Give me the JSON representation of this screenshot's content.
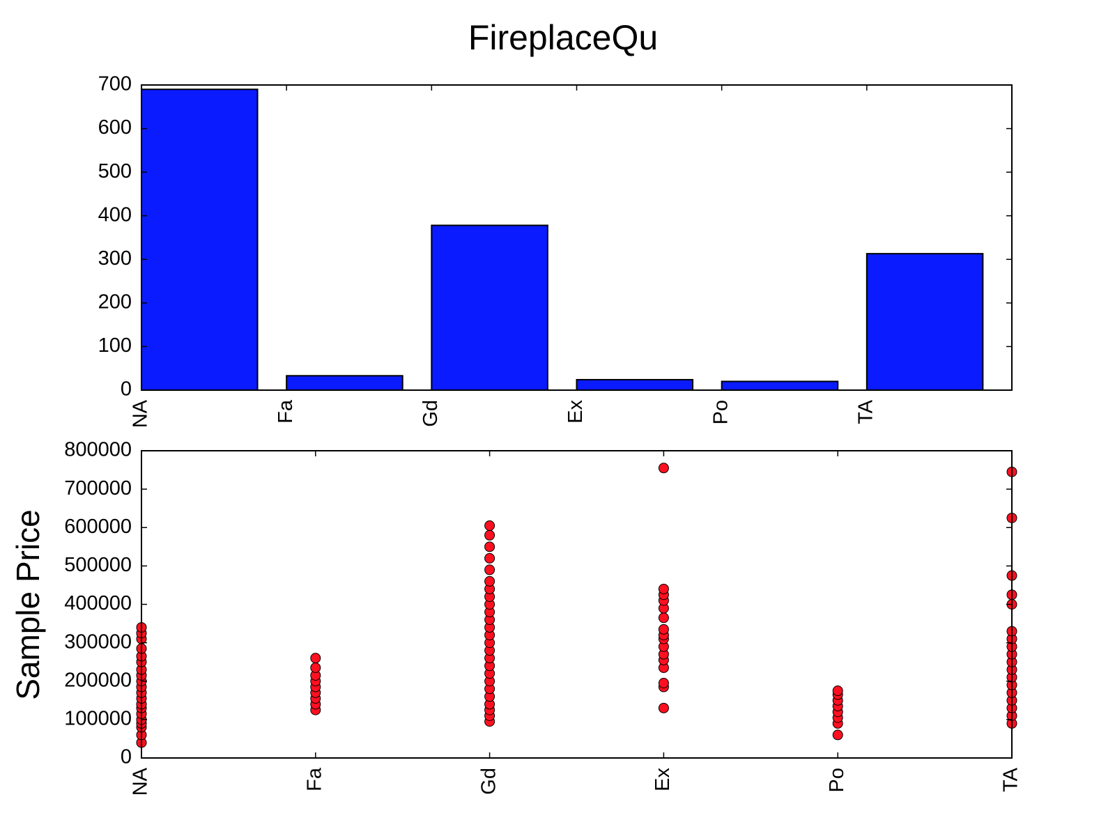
{
  "chart_data": [
    {
      "type": "bar",
      "title": "FireplaceQu",
      "categories": [
        "NA",
        "Fa",
        "Gd",
        "Ex",
        "Po",
        "TA"
      ],
      "values": [
        690,
        33,
        378,
        24,
        20,
        313
      ],
      "color": "#0a1cff",
      "ylim": [
        0,
        700
      ],
      "yticks": [
        0,
        100,
        200,
        300,
        400,
        500,
        600,
        700
      ]
    },
    {
      "type": "scatter",
      "ylabel": "Sample Price",
      "categories": [
        "NA",
        "Fa",
        "Gd",
        "Ex",
        "Po",
        "TA"
      ],
      "color": "#ff1020",
      "x": [
        "NA",
        "NA",
        "NA",
        "NA",
        "NA",
        "NA",
        "NA",
        "NA",
        "NA",
        "NA",
        "NA",
        "NA",
        "NA",
        "NA",
        "NA",
        "NA",
        "NA",
        "NA",
        "NA",
        "NA",
        "Fa",
        "Fa",
        "Fa",
        "Fa",
        "Fa",
        "Fa",
        "Fa",
        "Fa",
        "Fa",
        "Gd",
        "Gd",
        "Gd",
        "Gd",
        "Gd",
        "Gd",
        "Gd",
        "Gd",
        "Gd",
        "Gd",
        "Gd",
        "Gd",
        "Gd",
        "Gd",
        "Gd",
        "Gd",
        "Gd",
        "Gd",
        "Gd",
        "Gd",
        "Gd",
        "Gd",
        "Gd",
        "Gd",
        "Gd",
        "Ex",
        "Ex",
        "Ex",
        "Ex",
        "Ex",
        "Ex",
        "Ex",
        "Ex",
        "Ex",
        "Ex",
        "Ex",
        "Ex",
        "Ex",
        "Ex",
        "Ex",
        "Ex",
        "Po",
        "Po",
        "Po",
        "Po",
        "Po",
        "Po",
        "Po",
        "Po",
        "TA",
        "TA",
        "TA",
        "TA",
        "TA",
        "TA",
        "TA",
        "TA",
        "TA",
        "TA",
        "TA",
        "TA",
        "TA",
        "TA",
        "TA",
        "TA",
        "TA",
        "TA"
      ],
      "y": [
        40000,
        60000,
        80000,
        90000,
        100000,
        115000,
        130000,
        140000,
        155000,
        170000,
        185000,
        200000,
        215000,
        230000,
        250000,
        265000,
        285000,
        310000,
        325000,
        340000,
        125000,
        140000,
        155000,
        170000,
        185000,
        200000,
        215000,
        235000,
        260000,
        95000,
        110000,
        125000,
        140000,
        160000,
        180000,
        200000,
        220000,
        240000,
        260000,
        280000,
        300000,
        320000,
        340000,
        360000,
        380000,
        400000,
        420000,
        440000,
        460000,
        490000,
        520000,
        550000,
        580000,
        605000,
        130000,
        185000,
        195000,
        235000,
        255000,
        270000,
        290000,
        310000,
        320000,
        335000,
        365000,
        390000,
        410000,
        425000,
        440000,
        755000,
        60000,
        90000,
        105000,
        120000,
        135000,
        150000,
        165000,
        175000,
        90000,
        110000,
        130000,
        150000,
        170000,
        190000,
        210000,
        230000,
        250000,
        270000,
        290000,
        310000,
        330000,
        400000,
        425000,
        475000,
        625000,
        745000
      ],
      "ylim": [
        0,
        800000
      ],
      "yticks": [
        0,
        100000,
        200000,
        300000,
        400000,
        500000,
        600000,
        700000,
        800000
      ]
    }
  ]
}
